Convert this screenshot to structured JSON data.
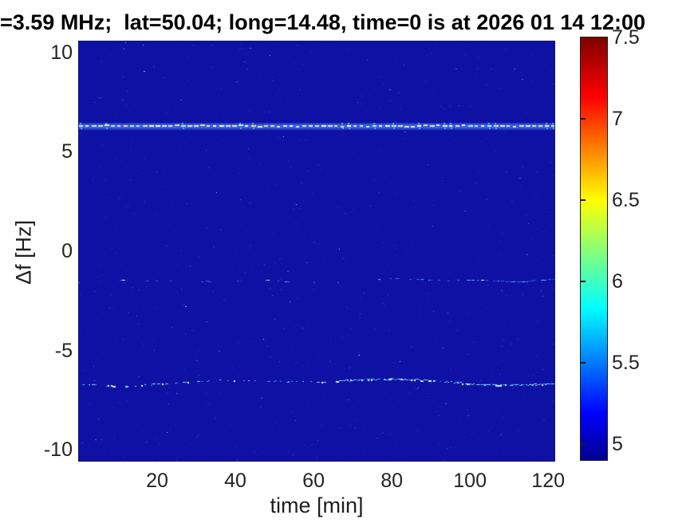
{
  "chart_data": {
    "type": "heatmap",
    "subtype": "doppler-spectrogram",
    "title": "=3.59 MHz;  lat=50.04; long=14.48, time=0 is at 2026 01 14 12:00",
    "xlabel": "time [min]",
    "ylabel": "Δf [Hz]",
    "xlim": [
      0,
      121.6
    ],
    "ylim": [
      -10.56,
      10.56
    ],
    "x_ticks": [
      20,
      40,
      60,
      80,
      100,
      120
    ],
    "y_ticks": [
      10,
      5,
      0,
      -5,
      -10
    ],
    "grid": false,
    "legend": false,
    "colormap": "jet",
    "background_value": 5.0,
    "background_color": "#0f10a4",
    "colorbar": {
      "position": "right",
      "range": [
        4.9,
        7.5
      ],
      "ticks": [
        7.5,
        7,
        6.5,
        6,
        5.5,
        5
      ],
      "stops": [
        {
          "v": 0.0,
          "color": "#00008f"
        },
        {
          "v": 0.11,
          "color": "#0000ff"
        },
        {
          "v": 0.36,
          "color": "#00ffff"
        },
        {
          "v": 0.615,
          "color": "#ffff00"
        },
        {
          "v": 0.86,
          "color": "#ff0000"
        },
        {
          "v": 1.0,
          "color": "#7f0000"
        }
      ]
    },
    "features": [
      {
        "name": "strong dashed spectral line",
        "df_hz": 6.3,
        "time_min": [
          0,
          121.6
        ],
        "intensity": 7.2,
        "style": "bright white/yellow dashed line, continuous across the whole record"
      },
      {
        "name": "faint intermittent trace",
        "df_hz": -1.5,
        "time_min": [
          0,
          121.6
        ],
        "intensity": 5.6,
        "style": "sparse dim cyan dots, denser after ~85 min, rises slightly at the right end"
      },
      {
        "name": "wavy Doppler trace",
        "df_hz": -6.6,
        "time_min": [
          0,
          121.6
        ],
        "intensity": 6.0,
        "style": "undulating cyan line, intermittent before ~65 min, nearly continuous after"
      }
    ]
  }
}
